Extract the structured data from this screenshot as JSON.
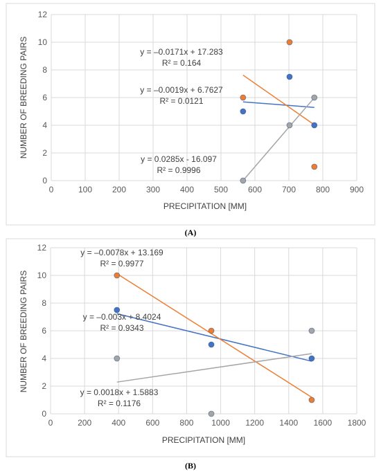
{
  "chart_data": [
    {
      "type": "scatter",
      "caption": "(A)",
      "xlabel": "PRECIPITATION [MM]",
      "ylabel": "NUMBER OF BREEDING PAIRS",
      "xlim": [
        0,
        900
      ],
      "ylim": [
        0,
        12
      ],
      "xticks": [
        0,
        100,
        200,
        300,
        400,
        500,
        600,
        700,
        800,
        900
      ],
      "yticks": [
        0,
        2,
        4,
        6,
        8,
        10,
        12
      ],
      "grid": true,
      "series": [
        {
          "color": "#4472c4",
          "points": [
            [
              565,
              5
            ],
            [
              702,
              7.5
            ],
            [
              775,
              4
            ]
          ],
          "trendline": {
            "x": [
              565,
              775
            ],
            "slope": -0.0019,
            "intercept": 6.7627
          },
          "equation": "y = –0.0019x + 6.7627",
          "r2": "R² = 0.0121"
        },
        {
          "color": "#ed7d31",
          "points": [
            [
              565,
              6
            ],
            [
              702,
              10
            ],
            [
              775,
              1
            ]
          ],
          "trendline": {
            "x": [
              565,
              775
            ],
            "slope": -0.0171,
            "intercept": 17.283
          },
          "equation": "y = –0.0171x + 17.283",
          "r2": "R² = 0.164"
        },
        {
          "color": "#a5a5a5",
          "points": [
            [
              565,
              0
            ],
            [
              702,
              4
            ],
            [
              775,
              6
            ]
          ],
          "trendline": {
            "x": [
              565,
              775
            ],
            "slope": 0.0285,
            "intercept": -16.097
          },
          "equation": "y = 0.0285x - 16.097",
          "r2": "R² = 0.9996"
        }
      ]
    },
    {
      "type": "scatter",
      "caption": "(B)",
      "xlabel": "PRECIPITATION [MM]",
      "ylabel": "NUMBER OF BREEDING PAIRS",
      "xlim": [
        0,
        1800
      ],
      "ylim": [
        0,
        12
      ],
      "xticks": [
        0,
        200,
        400,
        600,
        800,
        1000,
        1200,
        1400,
        1600,
        1800
      ],
      "yticks": [
        0,
        2,
        4,
        6,
        8,
        10,
        12
      ],
      "grid": true,
      "series": [
        {
          "color": "#4472c4",
          "points": [
            [
              390,
              7.5
            ],
            [
              945,
              5
            ],
            [
              1535,
              4
            ]
          ],
          "trendline": {
            "x": [
              390,
              1535
            ],
            "slope": -0.003,
            "intercept": 8.4024
          },
          "equation": "y = –0.003x + 8.4024",
          "r2": "R² = 0.9343"
        },
        {
          "color": "#ed7d31",
          "points": [
            [
              390,
              10
            ],
            [
              945,
              6
            ],
            [
              1535,
              1
            ]
          ],
          "trendline": {
            "x": [
              390,
              1535
            ],
            "slope": -0.0078,
            "intercept": 13.169
          },
          "equation": "y = –0.0078x + 13.169",
          "r2": "R² = 0.9977"
        },
        {
          "color": "#a5a5a5",
          "points": [
            [
              390,
              4
            ],
            [
              945,
              0
            ],
            [
              1535,
              6
            ]
          ],
          "trendline": {
            "x": [
              390,
              1535
            ],
            "slope": 0.0018,
            "intercept": 1.5883
          },
          "equation": "y = 0.0018x + 1.5883",
          "r2": "R² = 0.1176"
        }
      ]
    }
  ]
}
